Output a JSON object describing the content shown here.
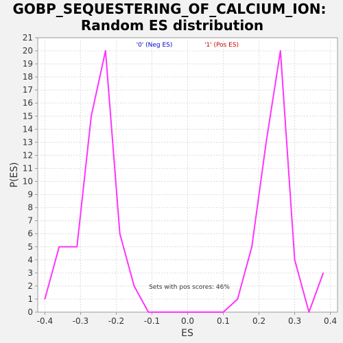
{
  "chart_data": {
    "type": "line",
    "title_lines": [
      "GOBP_SEQUESTERING_OF_CALCIUM_ION:",
      "Random ES distribution"
    ],
    "xlabel": "ES",
    "ylabel": "P(ES)",
    "xlim": [
      -0.42,
      0.42
    ],
    "ylim": [
      0,
      21
    ],
    "x_ticks": [
      -0.4,
      -0.3,
      -0.2,
      -0.1,
      0.0,
      0.1,
      0.2,
      0.3,
      0.4
    ],
    "x_tick_labels": [
      "-0.4",
      "-0.3",
      "-0.2",
      "-0.1",
      "0.0",
      "0.1",
      "0.2",
      "0.3",
      "0.4"
    ],
    "y_ticks": [
      0,
      1,
      2,
      3,
      4,
      5,
      6,
      7,
      8,
      9,
      10,
      11,
      12,
      13,
      14,
      15,
      16,
      17,
      18,
      19,
      20,
      21
    ],
    "grid": true,
    "line_color": "#ff33ff",
    "series": [
      {
        "x": [
          -0.4,
          -0.36,
          -0.31,
          -0.27,
          -0.23,
          -0.19,
          -0.15,
          -0.11,
          -0.07,
          -0.03,
          0.02,
          0.06,
          0.1,
          0.14,
          0.18,
          0.22,
          0.26,
          0.3,
          0.34,
          0.38
        ],
        "y": [
          1,
          5,
          5,
          15,
          20,
          6,
          2,
          0,
          0,
          0,
          0,
          0,
          0,
          1,
          5,
          13,
          20,
          4,
          0,
          3
        ]
      }
    ],
    "legend": [
      {
        "label": "'0' (Neg ES)",
        "color": "#0000cc"
      },
      {
        "label": "'1' (Pos ES)",
        "color": "#cc0000"
      }
    ],
    "annotation": "Sets with pos scores: 46%"
  }
}
